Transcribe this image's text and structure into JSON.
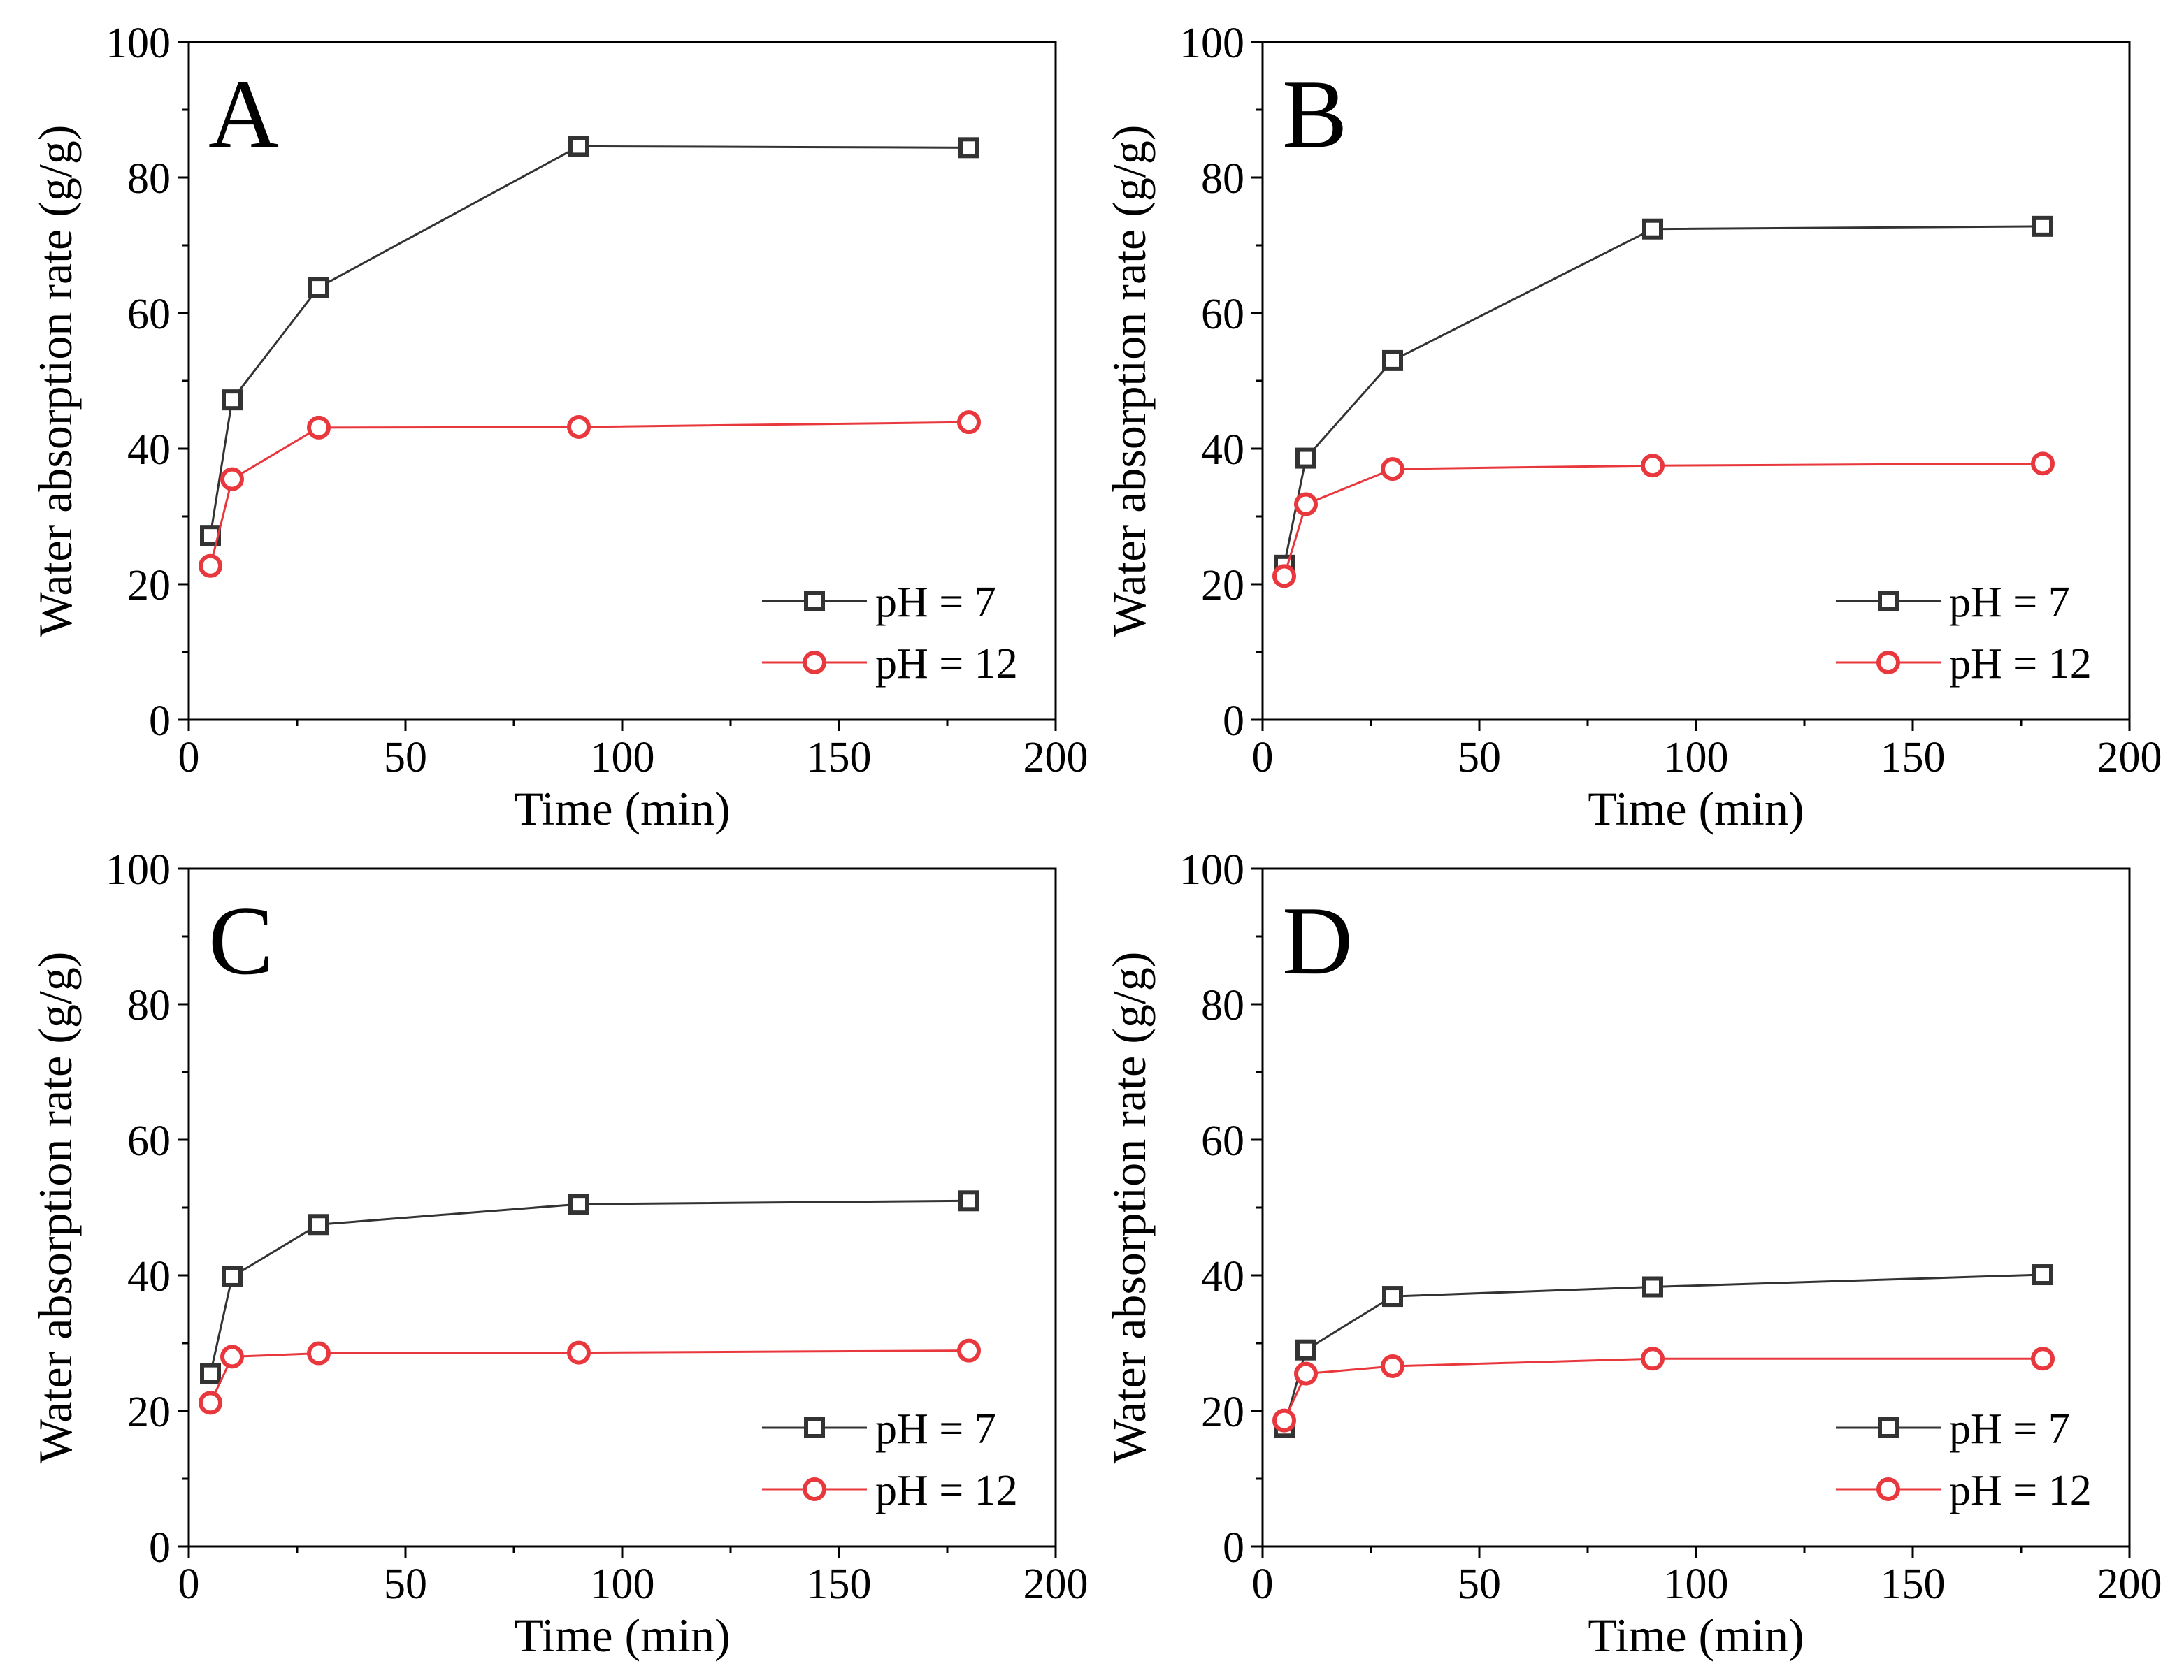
{
  "chart_data": [
    {
      "type": "line",
      "panel_label": "A",
      "xlabel": "Time (min)",
      "ylabel": "Water absorption rate (g/g)",
      "xlim": [
        0,
        200
      ],
      "ylim": [
        0,
        100
      ],
      "xticks": [
        "0",
        "50",
        "100",
        "150",
        "200"
      ],
      "yticks": [
        "0",
        "20",
        "40",
        "60",
        "80",
        "100"
      ],
      "legend_position": "bottom-right",
      "x": [
        5,
        10,
        30,
        90,
        180
      ],
      "series": [
        {
          "name": "pH = 7",
          "marker": "square",
          "color": "#333333",
          "values": [
            27.2,
            47.2,
            63.8,
            84.6,
            84.4
          ]
        },
        {
          "name": "pH = 12",
          "marker": "circle",
          "color": "#e8383d",
          "values": [
            22.7,
            35.5,
            43.1,
            43.2,
            43.9
          ]
        }
      ]
    },
    {
      "type": "line",
      "panel_label": "B",
      "xlabel": "Time (min)",
      "ylabel": "Water absorption rate (g/g)",
      "xlim": [
        0,
        200
      ],
      "ylim": [
        0,
        100
      ],
      "xticks": [
        "0",
        "50",
        "100",
        "150",
        "200"
      ],
      "yticks": [
        "0",
        "20",
        "40",
        "60",
        "80",
        "100"
      ],
      "legend_position": "bottom-right",
      "x": [
        5,
        10,
        30,
        90,
        180
      ],
      "series": [
        {
          "name": "pH = 7",
          "marker": "square",
          "color": "#333333",
          "values": [
            22.8,
            38.6,
            53.0,
            72.4,
            72.8
          ]
        },
        {
          "name": "pH = 12",
          "marker": "circle",
          "color": "#e8383d",
          "values": [
            21.2,
            31.8,
            37.0,
            37.5,
            37.8
          ]
        }
      ]
    },
    {
      "type": "line",
      "panel_label": "C",
      "xlabel": "Time (min)",
      "ylabel": "Water absorption rate (g/g)",
      "xlim": [
        0,
        200
      ],
      "ylim": [
        0,
        100
      ],
      "xticks": [
        "0",
        "50",
        "100",
        "150",
        "200"
      ],
      "yticks": [
        "0",
        "20",
        "40",
        "60",
        "80",
        "100"
      ],
      "legend_position": "bottom-right",
      "x": [
        5,
        10,
        30,
        90,
        180
      ],
      "series": [
        {
          "name": "pH = 7",
          "marker": "square",
          "color": "#333333",
          "values": [
            25.5,
            39.8,
            47.5,
            50.5,
            51.0
          ]
        },
        {
          "name": "pH = 12",
          "marker": "circle",
          "color": "#e8383d",
          "values": [
            21.2,
            28.0,
            28.5,
            28.6,
            28.9
          ]
        }
      ]
    },
    {
      "type": "line",
      "panel_label": "D",
      "xlabel": "Time (min)",
      "ylabel": "Water absorption rate (g/g)",
      "xlim": [
        0,
        200
      ],
      "ylim": [
        0,
        100
      ],
      "xticks": [
        "0",
        "50",
        "100",
        "150",
        "200"
      ],
      "yticks": [
        "0",
        "20",
        "40",
        "60",
        "80",
        "100"
      ],
      "legend_position": "bottom-right",
      "x": [
        5,
        10,
        30,
        90,
        180
      ],
      "series": [
        {
          "name": "pH = 7",
          "marker": "square",
          "color": "#333333",
          "values": [
            17.6,
            29.0,
            36.9,
            38.3,
            40.1
          ]
        },
        {
          "name": "pH = 12",
          "marker": "circle",
          "color": "#e8383d",
          "values": [
            18.6,
            25.5,
            26.6,
            27.7,
            27.7
          ]
        }
      ]
    }
  ]
}
